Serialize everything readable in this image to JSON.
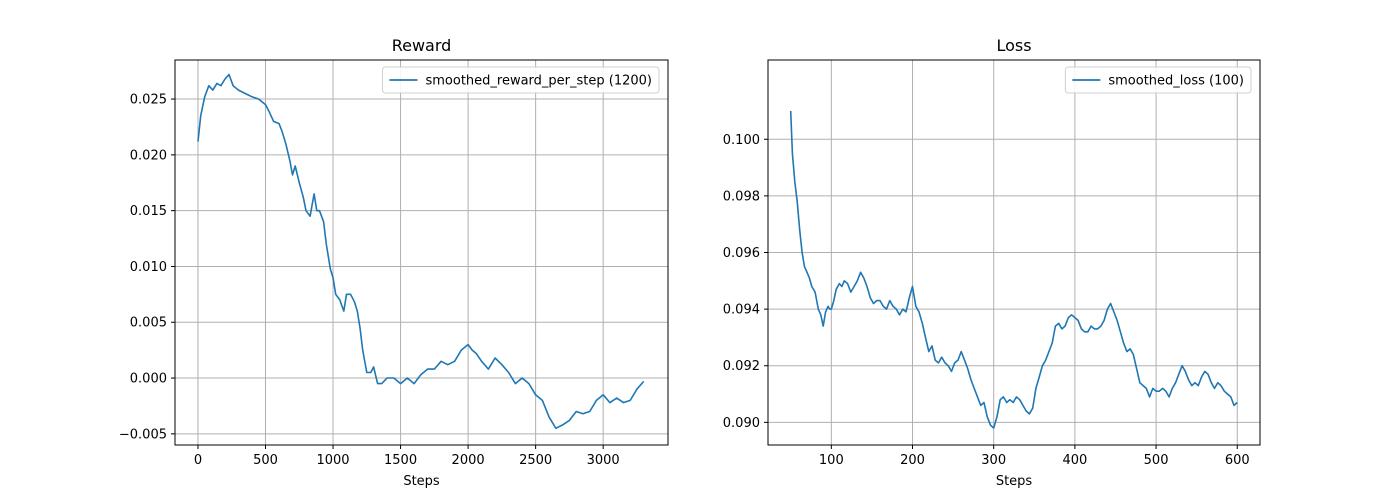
{
  "chart_data": [
    {
      "type": "line",
      "title": "Reward",
      "xlabel": "Steps",
      "ylabel": "",
      "xlim": [
        -170,
        3480
      ],
      "ylim": [
        -0.006,
        0.0285
      ],
      "xticks": [
        0,
        500,
        1000,
        1500,
        2000,
        2500,
        3000
      ],
      "xtick_labels": [
        "0",
        "500",
        "1000",
        "1500",
        "2000",
        "2500",
        "3000"
      ],
      "yticks": [
        -0.005,
        0.0,
        0.005,
        0.01,
        0.015,
        0.02,
        0.025
      ],
      "ytick_labels": [
        "−0.005",
        "0.000",
        "0.005",
        "0.010",
        "0.015",
        "0.020",
        "0.025"
      ],
      "grid": true,
      "legend_position": "top-right",
      "color": "#1f77b4",
      "series": [
        {
          "name": "smoothed_reward_per_step (1200)",
          "x": [
            0,
            20,
            50,
            80,
            110,
            140,
            170,
            200,
            230,
            260,
            300,
            350,
            400,
            450,
            500,
            530,
            560,
            600,
            620,
            650,
            680,
            700,
            720,
            750,
            780,
            800,
            830,
            860,
            880,
            900,
            930,
            950,
            980,
            1000,
            1020,
            1050,
            1080,
            1100,
            1130,
            1160,
            1180,
            1200,
            1220,
            1250,
            1280,
            1300,
            1330,
            1360,
            1400,
            1450,
            1500,
            1550,
            1600,
            1650,
            1700,
            1750,
            1800,
            1850,
            1900,
            1950,
            1980,
            2000,
            2030,
            2060,
            2100,
            2150,
            2200,
            2250,
            2300,
            2350,
            2400,
            2450,
            2500,
            2550,
            2600,
            2650,
            2700,
            2750,
            2800,
            2850,
            2900,
            2950,
            3000,
            3050,
            3100,
            3150,
            3200,
            3250,
            3300
          ],
          "y": [
            0.0212,
            0.0235,
            0.0252,
            0.0262,
            0.0258,
            0.0264,
            0.0262,
            0.0268,
            0.0272,
            0.0262,
            0.0258,
            0.0255,
            0.0252,
            0.025,
            0.0245,
            0.0238,
            0.023,
            0.0228,
            0.0222,
            0.021,
            0.0195,
            0.0182,
            0.019,
            0.0175,
            0.0162,
            0.015,
            0.0145,
            0.0165,
            0.015,
            0.015,
            0.014,
            0.012,
            0.0098,
            0.009,
            0.0075,
            0.007,
            0.006,
            0.0075,
            0.0075,
            0.0068,
            0.006,
            0.0045,
            0.0025,
            0.0005,
            0.0005,
            0.001,
            -0.0005,
            -0.0005,
            0.0,
            0.0,
            -0.0005,
            0.0,
            -0.0005,
            0.0003,
            0.0008,
            0.0008,
            0.0015,
            0.0012,
            0.0015,
            0.0025,
            0.0028,
            0.003,
            0.0025,
            0.0022,
            0.0015,
            0.0008,
            0.0018,
            0.0012,
            0.0005,
            -0.0005,
            0.0,
            -0.0005,
            -0.0015,
            -0.002,
            -0.0035,
            -0.0045,
            -0.0042,
            -0.0038,
            -0.003,
            -0.0032,
            -0.003,
            -0.002,
            -0.0015,
            -0.0022,
            -0.0018,
            -0.0022,
            -0.002,
            -0.001,
            -0.0003
          ]
        }
      ]
    },
    {
      "type": "line",
      "title": "Loss",
      "xlabel": "Steps",
      "ylabel": "",
      "xlim": [
        22,
        628
      ],
      "ylim": [
        0.0892,
        0.1028
      ],
      "xticks": [
        100,
        200,
        300,
        400,
        500,
        600
      ],
      "xtick_labels": [
        "100",
        "200",
        "300",
        "400",
        "500",
        "600"
      ],
      "yticks": [
        0.09,
        0.092,
        0.094,
        0.096,
        0.098,
        0.1
      ],
      "ytick_labels": [
        "0.090",
        "0.092",
        "0.094",
        "0.096",
        "0.098",
        "0.100"
      ],
      "grid": true,
      "legend_position": "top-right",
      "color": "#1f77b4",
      "series": [
        {
          "name": "smoothed_loss (100)",
          "x": [
            50,
            52,
            55,
            58,
            61,
            64,
            67,
            70,
            73,
            76,
            80,
            84,
            87,
            90,
            93,
            96,
            98,
            100,
            103,
            106,
            110,
            113,
            116,
            120,
            124,
            128,
            132,
            136,
            140,
            144,
            148,
            152,
            156,
            160,
            164,
            168,
            172,
            176,
            180,
            184,
            188,
            192,
            196,
            198,
            200,
            204,
            208,
            212,
            216,
            220,
            224,
            228,
            232,
            236,
            240,
            244,
            248,
            252,
            256,
            260,
            264,
            268,
            272,
            276,
            280,
            284,
            288,
            292,
            296,
            300,
            304,
            308,
            312,
            316,
            320,
            324,
            328,
            332,
            336,
            340,
            344,
            348,
            352,
            356,
            360,
            364,
            368,
            372,
            376,
            380,
            384,
            388,
            392,
            396,
            400,
            404,
            408,
            412,
            416,
            420,
            424,
            428,
            432,
            436,
            440,
            444,
            448,
            452,
            456,
            460,
            464,
            468,
            472,
            476,
            480,
            484,
            488,
            492,
            496,
            500,
            504,
            508,
            512,
            516,
            520,
            524,
            528,
            532,
            536,
            540,
            544,
            548,
            552,
            556,
            560,
            564,
            568,
            572,
            576,
            580,
            584,
            588,
            592,
            596,
            600
          ],
          "y": [
            0.101,
            0.0995,
            0.0985,
            0.0978,
            0.0968,
            0.096,
            0.0955,
            0.0953,
            0.0951,
            0.0948,
            0.0946,
            0.094,
            0.0938,
            0.0934,
            0.0939,
            0.0941,
            0.094,
            0.094,
            0.0943,
            0.0947,
            0.0949,
            0.0948,
            0.095,
            0.0949,
            0.0946,
            0.0948,
            0.095,
            0.0953,
            0.0951,
            0.0948,
            0.0944,
            0.0942,
            0.0943,
            0.0943,
            0.0941,
            0.094,
            0.0943,
            0.0941,
            0.094,
            0.0938,
            0.094,
            0.0939,
            0.0944,
            0.0946,
            0.0948,
            0.0941,
            0.0939,
            0.0935,
            0.093,
            0.0925,
            0.0927,
            0.0922,
            0.0921,
            0.0923,
            0.0921,
            0.092,
            0.0918,
            0.0921,
            0.0922,
            0.0925,
            0.0922,
            0.0919,
            0.0915,
            0.0912,
            0.0909,
            0.0906,
            0.0907,
            0.0902,
            0.0899,
            0.0898,
            0.0902,
            0.0908,
            0.0909,
            0.0907,
            0.0908,
            0.0907,
            0.0909,
            0.0908,
            0.0906,
            0.0904,
            0.0903,
            0.0905,
            0.0912,
            0.0916,
            0.092,
            0.0922,
            0.0925,
            0.0928,
            0.0934,
            0.0935,
            0.0933,
            0.0934,
            0.0937,
            0.0938,
            0.0937,
            0.0936,
            0.0933,
            0.0932,
            0.0932,
            0.0934,
            0.0933,
            0.0933,
            0.0934,
            0.0936,
            0.094,
            0.0942,
            0.0939,
            0.0936,
            0.0932,
            0.0928,
            0.0925,
            0.0926,
            0.0924,
            0.0919,
            0.0914,
            0.0913,
            0.0912,
            0.0909,
            0.0912,
            0.0911,
            0.0911,
            0.0912,
            0.0911,
            0.0909,
            0.0912,
            0.0914,
            0.0917,
            0.092,
            0.0918,
            0.0915,
            0.0913,
            0.0914,
            0.0913,
            0.0916,
            0.0918,
            0.0917,
            0.0914,
            0.0912,
            0.0914,
            0.0913,
            0.0911,
            0.091,
            0.0909,
            0.0906,
            0.0907
          ]
        }
      ]
    }
  ]
}
